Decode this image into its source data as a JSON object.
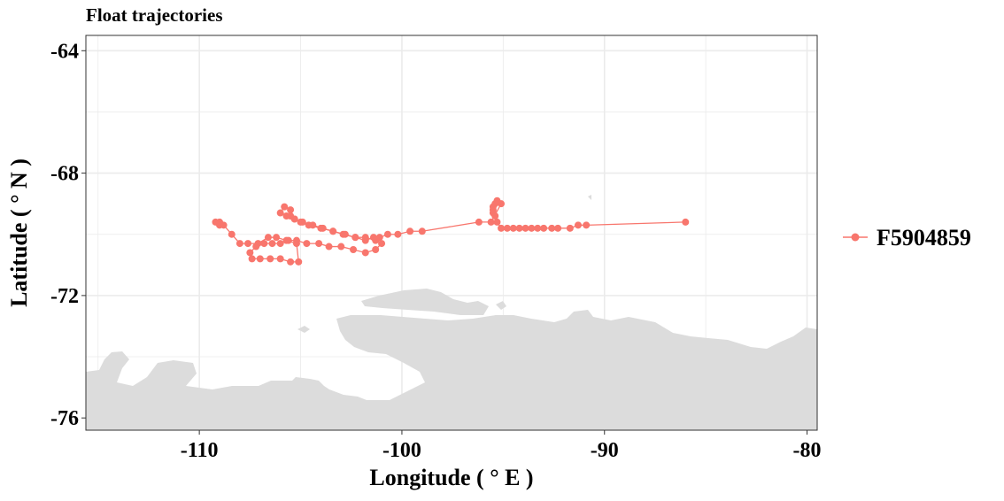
{
  "chart_data": {
    "type": "line",
    "title": "Float trajectories",
    "xlabel": "Longitude ( ° E )",
    "ylabel": "Latitude ( ° N )",
    "xlim": [
      -115.6,
      -79.5
    ],
    "ylim": [
      -76.4,
      -63.5
    ],
    "x_ticks": [
      -110,
      -100,
      -90,
      -80
    ],
    "y_ticks": [
      -64,
      -68,
      -72,
      -76
    ],
    "x_tick_labels": [
      "-110",
      "-100",
      "-90",
      "-80"
    ],
    "y_tick_labels": [
      "-64",
      "-68",
      "-72",
      "-76"
    ],
    "grid": true,
    "legend_position": "right",
    "series": [
      {
        "name": "F5904859",
        "color": "#F8766D",
        "x": [
          -86.0,
          -90.9,
          -91.3,
          -91.7,
          -92.3,
          -92.6,
          -93.0,
          -93.3,
          -93.6,
          -93.9,
          -94.2,
          -94.5,
          -94.8,
          -95.1,
          -95.3,
          -95.4,
          -95.5,
          -95.5,
          -95.5,
          -95.4,
          -95.3,
          -95.1,
          -95.6,
          -96.2,
          -99.0,
          -99.6,
          -100.2,
          -100.7,
          -101.1,
          -101.4,
          -101.8,
          -102.3,
          -102.9,
          -103.4,
          -103.9,
          -104.4,
          -104.9,
          -105.3,
          -105.5,
          -105.8,
          -106.0,
          -105.7,
          -105.5,
          -105.3,
          -105.0,
          -104.6,
          -104.0,
          -103.4,
          -102.8,
          -102.3,
          -101.8,
          -101.3,
          -101.0,
          -101.3,
          -101.8,
          -102.4,
          -103.0,
          -103.6,
          -104.1,
          -104.7,
          -105.2,
          -105.6,
          -106.0,
          -106.4,
          -106.8,
          -107.2,
          -107.5,
          -107.4,
          -107.0,
          -106.5,
          -106.0,
          -105.5,
          -105.1,
          -105.2,
          -105.7,
          -106.2,
          -106.6,
          -107.1,
          -107.6,
          -108.0,
          -108.4,
          -108.8,
          -109.0,
          -109.2,
          -109.0
        ],
        "y": [
          -69.6,
          -69.7,
          -69.7,
          -69.8,
          -69.8,
          -69.8,
          -69.8,
          -69.8,
          -69.8,
          -69.8,
          -69.8,
          -69.8,
          -69.8,
          -69.8,
          -69.6,
          -69.4,
          -69.3,
          -69.2,
          -69.1,
          -69.0,
          -68.9,
          -69.0,
          -69.6,
          -69.6,
          -69.9,
          -69.9,
          -70.0,
          -70.0,
          -70.1,
          -70.1,
          -70.2,
          -70.1,
          -70.0,
          -69.9,
          -69.8,
          -69.7,
          -69.6,
          -69.5,
          -69.2,
          -69.1,
          -69.3,
          -69.4,
          -69.4,
          -69.5,
          -69.6,
          -69.7,
          -69.8,
          -69.9,
          -70.0,
          -70.1,
          -70.1,
          -70.2,
          -70.3,
          -70.5,
          -70.6,
          -70.5,
          -70.4,
          -70.4,
          -70.3,
          -70.3,
          -70.2,
          -70.2,
          -70.3,
          -70.3,
          -70.3,
          -70.4,
          -70.6,
          -70.8,
          -70.8,
          -70.8,
          -70.8,
          -70.9,
          -70.9,
          -70.3,
          -70.2,
          -70.1,
          -70.1,
          -70.3,
          -70.3,
          -70.3,
          -70.0,
          -69.7,
          -69.6,
          -69.6,
          -69.7
        ]
      }
    ]
  },
  "land_color": "#DCDCDC",
  "grid_color": "#EBEBEB"
}
